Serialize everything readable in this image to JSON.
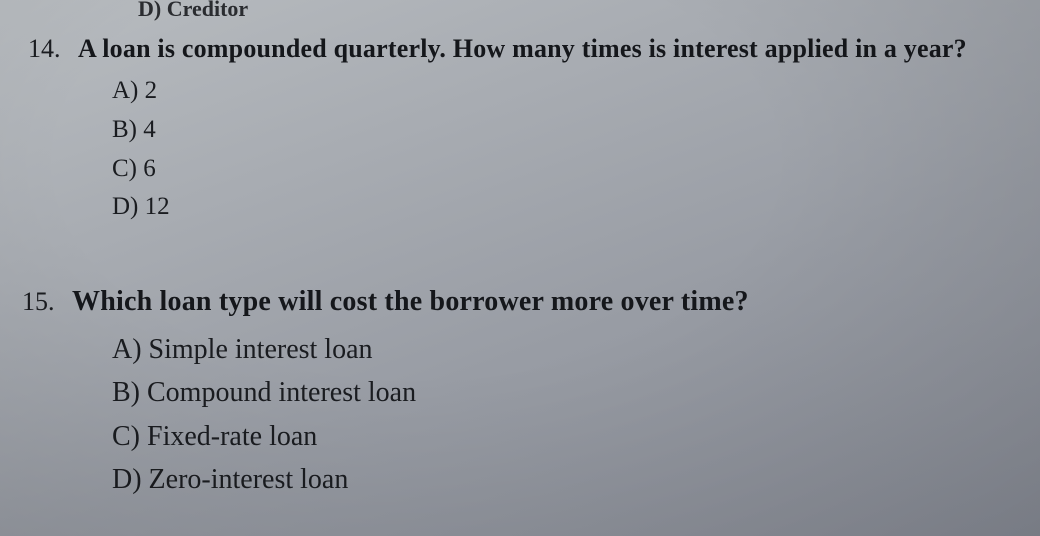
{
  "partial_option": "D) Creditor",
  "q14": {
    "number": "14.",
    "text": "A loan is compounded quarterly. How many times is interest applied in a year?",
    "options": {
      "a": "A) 2",
      "b": "B) 4",
      "c": "C) 6",
      "d": "D) 12"
    }
  },
  "q15": {
    "number": "15.",
    "text": "Which loan type will cost the borrower more over time?",
    "options": {
      "a": "A) Simple interest loan",
      "b": "B) Compound interest loan",
      "c": "C) Fixed-rate loan",
      "d": "D) Zero-interest loan"
    }
  }
}
